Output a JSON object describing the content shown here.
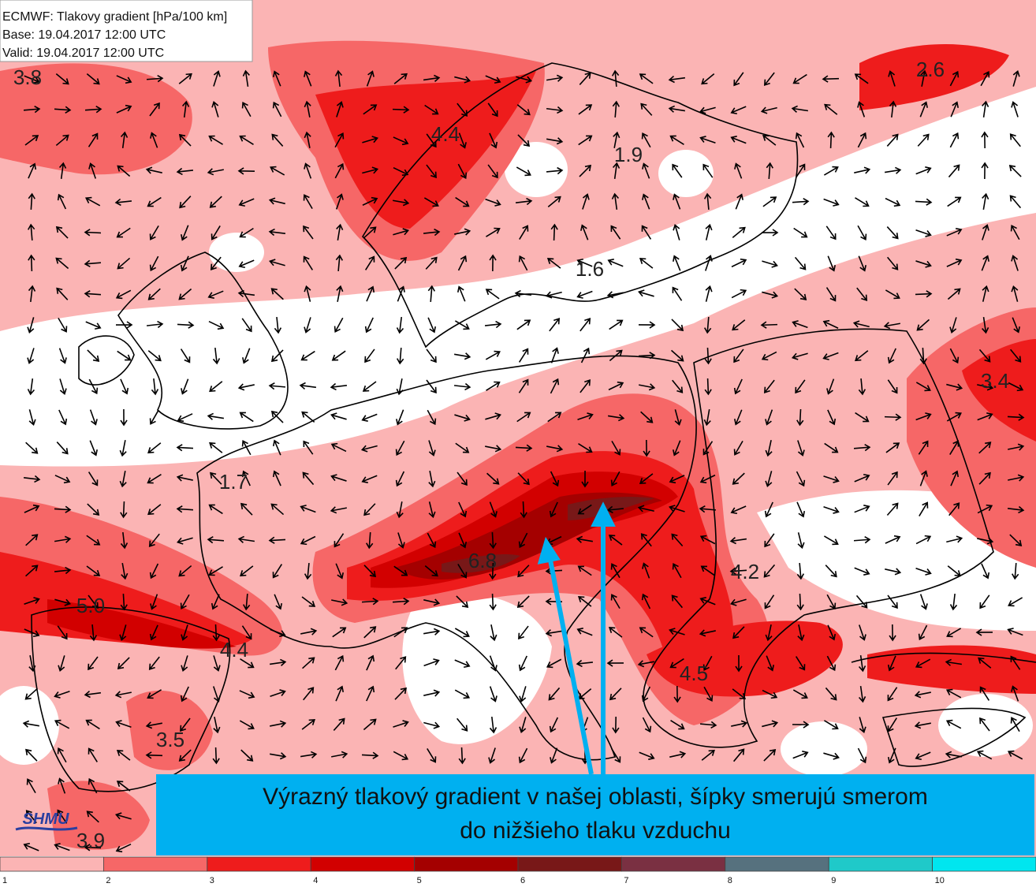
{
  "header": {
    "lines": [
      "ECMWF: Tlakovy gradient [hPa/100 km]",
      "Base: 19.04.2017 12:00 UTC",
      "Valid: 19.04.2017 12:00 UTC"
    ]
  },
  "contour_labels": [
    "3.8",
    "2.6",
    "4.4",
    "1.9",
    "1.6",
    "3.4",
    "1.7",
    "6.8",
    "4.2",
    "5.0",
    "4.4",
    "4.5",
    "3.5",
    "3.9"
  ],
  "logo": "SHMU",
  "annotation": {
    "lines": [
      "Výrazný tlakový gradient v našej oblasti, šípky smerujú smerom",
      "do nižšieho tlaku vzduchu"
    ]
  },
  "legend": [
    {
      "label": "1",
      "color": "#fbb4b4"
    },
    {
      "label": "2",
      "color": "#f66767"
    },
    {
      "label": "3",
      "color": "#ee1c1c"
    },
    {
      "label": "4",
      "color": "#d20000"
    },
    {
      "label": "5",
      "color": "#a40000"
    },
    {
      "label": "6",
      "color": "#781818"
    },
    {
      "label": "7",
      "color": "#7a3042"
    },
    {
      "label": "8",
      "color": "#56717e"
    },
    {
      "label": "9",
      "color": "#1fc9c9"
    },
    {
      "label": "10",
      "color": "#00e6ef"
    }
  ]
}
